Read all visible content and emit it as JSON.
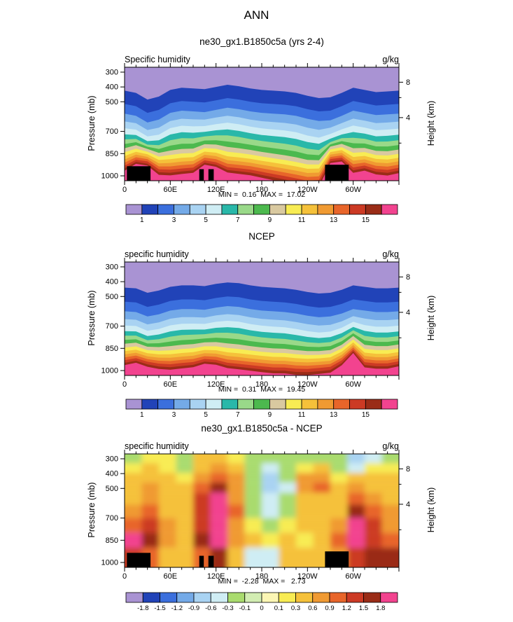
{
  "title": "ANN",
  "axes": {
    "pressure_label": "Pressure (mb)",
    "height_label": "Height (km)",
    "pressure_ticks": [
      300,
      400,
      500,
      700,
      850,
      1000
    ],
    "height_ticks": [
      {
        "label": "8",
        "p": 368
      },
      {
        "label": "4",
        "p": 607
      }
    ],
    "height_minor": [
      472,
      779
    ],
    "lon_ticks": [
      {
        "label": "0",
        "lon": 0
      },
      {
        "label": "60E",
        "lon": 60
      },
      {
        "label": "120E",
        "lon": 120
      },
      {
        "label": "180",
        "lon": 180
      },
      {
        "label": "120W",
        "lon": 240
      },
      {
        "label": "60W",
        "lon": 300
      }
    ],
    "lon_minor_step": 15
  },
  "chart_data": [
    {
      "name": "model",
      "type": "contour",
      "title": "ne30_gx1.B1850c5a (yrs 2-4)",
      "field_label": "Specific humidity",
      "units_label": "g/kg",
      "stats": "MIN =  0.16  MAX =  17.02",
      "levels": [
        1,
        2,
        3,
        4,
        5,
        6,
        7,
        8,
        9,
        10,
        11,
        12,
        13,
        14,
        15,
        16
      ],
      "colors": [
        "#A993D3",
        "#2143B8",
        "#3B6FDD",
        "#74AAE8",
        "#A9D3F2",
        "#CFEDF4",
        "#29B8A9",
        "#99D989",
        "#4CB94E",
        "#D9C9A0",
        "#F8EC53",
        "#F5C13A",
        "#F09A32",
        "#E8652A",
        "#CC3A24",
        "#9A2C17",
        "#F2438F"
      ],
      "lon_grid": [
        0,
        15,
        30,
        45,
        60,
        75,
        90,
        105,
        120,
        135,
        150,
        165,
        180,
        195,
        210,
        225,
        240,
        255,
        270,
        285,
        300,
        315,
        330,
        345,
        360
      ],
      "base_pressure": [
        430,
        520,
        585,
        640,
        688,
        730,
        768,
        802,
        834,
        863,
        890,
        915,
        938,
        960,
        980,
        998
      ],
      "upper_weight": [
        1,
        1,
        1,
        1,
        1,
        0.9,
        0.8,
        0.6,
        0.45,
        0.35,
        0.25,
        0.2,
        0.15,
        0.1,
        0.1,
        0.1
      ],
      "surface_weight": [
        0,
        0,
        0,
        0.1,
        0.2,
        0.3,
        0.5,
        0.7,
        0.9,
        1,
        1.1,
        1.2,
        1.3,
        1.4,
        1.5,
        1.6
      ],
      "upper_anom": [
        5,
        -10,
        -55,
        -35,
        10,
        25,
        20,
        15,
        30,
        45,
        35,
        20,
        10,
        5,
        0,
        -10,
        -30,
        -45,
        -40,
        -10,
        25,
        10,
        -5,
        0,
        5
      ],
      "surface_anom": [
        20,
        50,
        45,
        5,
        0,
        5,
        10,
        45,
        35,
        10,
        5,
        0,
        -10,
        -20,
        -30,
        -40,
        -50,
        -45,
        55,
        60,
        10,
        20,
        5,
        0,
        10
      ],
      "topo": [
        {
          "lon0": 3,
          "lon1": 34,
          "p": 935
        },
        {
          "lon0": 98,
          "lon1": 104,
          "p": 955
        },
        {
          "lon0": 110,
          "lon1": 117,
          "p": 955
        },
        {
          "lon0": 263,
          "lon1": 294,
          "p": 925
        }
      ],
      "colorbar_labels": [
        "1",
        "3",
        "5",
        "7",
        "9",
        "11",
        "13",
        "15"
      ]
    },
    {
      "name": "ncep",
      "type": "contour",
      "title": "NCEP",
      "field_label": "specific humidity",
      "units_label": "g/kg",
      "stats": "MIN =  0.31  MAX =  19.45",
      "levels": [
        1,
        2,
        3,
        4,
        5,
        6,
        7,
        8,
        9,
        10,
        11,
        12,
        13,
        14,
        15,
        16
      ],
      "colors": [
        "#A993D3",
        "#2143B8",
        "#3B6FDD",
        "#74AAE8",
        "#A9D3F2",
        "#CFEDF4",
        "#29B8A9",
        "#99D989",
        "#4CB94E",
        "#D9C9A0",
        "#F8EC53",
        "#F5C13A",
        "#F09A32",
        "#E8652A",
        "#CC3A24",
        "#9A2C17",
        "#F2438F"
      ],
      "lon_grid": [
        0,
        15,
        30,
        45,
        60,
        75,
        90,
        105,
        120,
        135,
        150,
        165,
        180,
        195,
        210,
        225,
        240,
        255,
        270,
        285,
        300,
        315,
        330,
        345,
        360
      ],
      "base_pressure": [
        440,
        535,
        600,
        655,
        700,
        740,
        775,
        807,
        837,
        865,
        891,
        915,
        937,
        958,
        978,
        995
      ],
      "upper_weight": [
        1,
        1,
        1,
        1,
        1,
        0.9,
        0.8,
        0.6,
        0.45,
        0.35,
        0.25,
        0.2,
        0.15,
        0.1,
        0.1,
        0.1
      ],
      "surface_weight": [
        0,
        0,
        0,
        0.1,
        0.2,
        0.3,
        0.5,
        0.7,
        0.9,
        1,
        1.1,
        1.2,
        1.3,
        1.4,
        1.5,
        1.6
      ],
      "upper_anom": [
        0,
        -5,
        -35,
        -20,
        5,
        15,
        15,
        10,
        25,
        35,
        30,
        15,
        5,
        0,
        -5,
        -15,
        -30,
        -40,
        -35,
        -15,
        15,
        5,
        -5,
        -5,
        0
      ],
      "surface_anom": [
        20,
        30,
        15,
        5,
        0,
        5,
        10,
        25,
        20,
        5,
        0,
        -5,
        -10,
        -15,
        -15,
        -20,
        -20,
        -15,
        -10,
        20,
        70,
        10,
        5,
        5,
        15
      ],
      "topo": [],
      "colorbar_labels": [
        "1",
        "3",
        "5",
        "7",
        "9",
        "11",
        "13",
        "15"
      ]
    },
    {
      "name": "difference",
      "type": "heatmap",
      "title": "ne30_gx1.B1850c5a - NCEP",
      "field_label": "specific humidity",
      "units_label": "g/kg",
      "stats": "MIN =  -2.28  MAX =   2.73",
      "bounds": [
        -1.8,
        -1.5,
        -1.2,
        -0.9,
        -0.6,
        -0.3,
        -0.1,
        0,
        0.1,
        0.3,
        0.6,
        0.9,
        1.2,
        1.5,
        1.8
      ],
      "colors": [
        "#A993D3",
        "#2143B8",
        "#3B6FDD",
        "#74AAE8",
        "#A9D3F2",
        "#CFEDF4",
        "#A9DB6E",
        "#D2EDB2",
        "#FBF6B4",
        "#F8EC53",
        "#F5C13A",
        "#F09A32",
        "#E8652A",
        "#CC3A24",
        "#9A2C17",
        "#F2438F"
      ],
      "lon_edges": [
        0,
        22.5,
        45,
        67.5,
        90,
        112.5,
        135,
        157.5,
        180,
        202.5,
        225,
        247.5,
        270,
        292.5,
        315,
        337.5,
        360
      ],
      "p_edges": [
        267,
        330,
        395,
        460,
        530,
        610,
        700,
        800,
        900,
        1033
      ],
      "values": [
        [
          -0.2,
          0.2,
          0.2,
          -0.2,
          0.3,
          0.4,
          0.2,
          -0.2,
          -0.2,
          -0.2,
          -0.2,
          -0.2,
          -0.2,
          -0.9,
          -0.5,
          -0.2
        ],
        [
          0.2,
          0.4,
          0.2,
          -0.2,
          0.5,
          0.7,
          0.4,
          -0.2,
          -0.4,
          -0.2,
          0.2,
          0.4,
          -0.2,
          -0.4,
          0.2,
          0.2
        ],
        [
          0.4,
          0.5,
          0.3,
          0.2,
          0.7,
          1.0,
          0.6,
          -0.2,
          -0.8,
          -0.3,
          0.7,
          0.8,
          0.2,
          0.4,
          0.4,
          0.3
        ],
        [
          0.4,
          0.6,
          0.4,
          0.3,
          1.0,
          1.6,
          0.8,
          -0.3,
          -0.8,
          -0.4,
          0.6,
          0.9,
          0.3,
          0.7,
          0.5,
          0.4
        ],
        [
          0.5,
          0.7,
          0.4,
          0.4,
          1.2,
          1.8,
          0.8,
          -0.3,
          -0.6,
          -0.3,
          0.4,
          0.5,
          0.3,
          1.0,
          0.7,
          0.5
        ],
        [
          0.7,
          0.9,
          0.5,
          0.4,
          1.3,
          1.9,
          0.9,
          -0.2,
          -0.4,
          -0.2,
          0.3,
          0.3,
          0.5,
          1.5,
          1.0,
          0.6
        ],
        [
          1.0,
          1.3,
          0.6,
          0.5,
          1.4,
          1.8,
          0.8,
          0.2,
          -0.2,
          0.2,
          0.3,
          0.3,
          0.7,
          1.8,
          1.3,
          0.8
        ],
        [
          1.9,
          1.5,
          0.7,
          0.4,
          1.5,
          1.9,
          0.7,
          0.3,
          0.2,
          0.3,
          0.2,
          0.4,
          0.9,
          1.9,
          1.4,
          1.0
        ],
        [
          1.4,
          1.0,
          0.5,
          0.4,
          1.0,
          1.6,
          0.4,
          -0.6,
          -0.4,
          0.3,
          0.4,
          0.3,
          0.7,
          1.3,
          1.5,
          1.6
        ]
      ],
      "topo": [
        {
          "lon0": 3,
          "lon1": 34,
          "p": 935
        },
        {
          "lon0": 98,
          "lon1": 104,
          "p": 955
        },
        {
          "lon0": 110,
          "lon1": 117,
          "p": 955
        },
        {
          "lon0": 263,
          "lon1": 294,
          "p": 925
        }
      ],
      "colorbar_labels": [
        "-1.8",
        "-1.5",
        "-1.2",
        "-0.9",
        "-0.6",
        "-0.3",
        "-0.1",
        "0",
        "0.1",
        "0.3",
        "0.6",
        "0.9",
        "1.2",
        "1.5",
        "1.8"
      ]
    }
  ]
}
